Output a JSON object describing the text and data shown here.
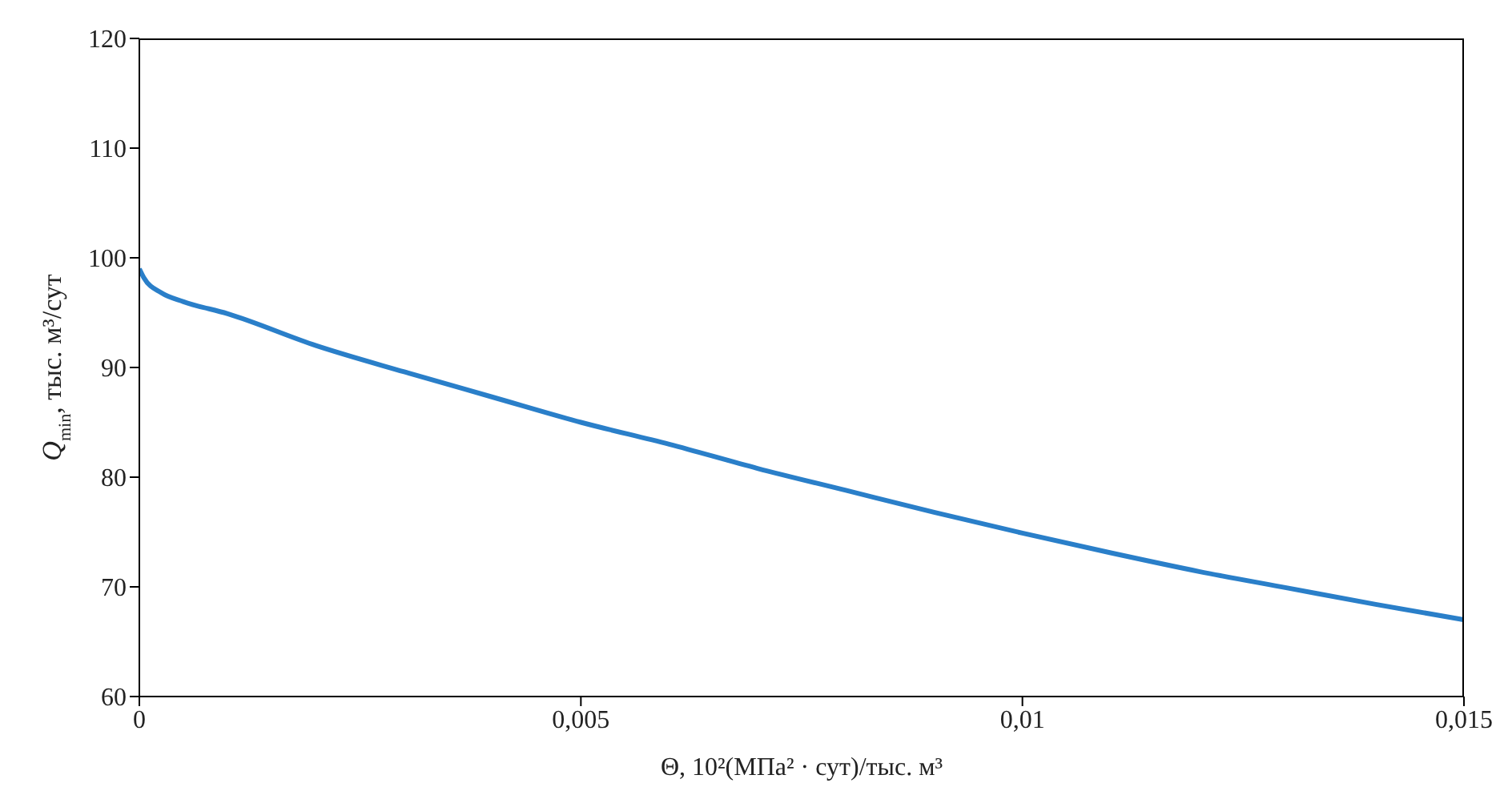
{
  "chart_data": {
    "type": "line",
    "xlabel": "Θ, 10²(МПа² · сут)/тыс. м³",
    "ylabel": "Q$_{min}$, тыс. м³/сут",
    "x": [
      0,
      5e-05,
      0.00025,
      0.0005,
      0.001,
      0.002,
      0.003,
      0.004,
      0.005,
      0.006,
      0.007,
      0.008,
      0.009,
      0.01,
      0.011,
      0.012,
      0.013,
      0.014,
      0.015
    ],
    "series": [
      {
        "color": "#2a7fc9",
        "values": [
          99,
          98.2,
          96.8,
          96.0,
          94.9,
          92.0,
          89.6,
          87.3,
          85.0,
          83.0,
          80.8,
          78.8,
          76.8,
          74.9,
          73.1,
          71.4,
          69.9,
          68.4,
          67.0
        ]
      }
    ],
    "xlim": [
      0,
      0.015
    ],
    "xticks": [
      0,
      {
        "value": 0.005,
        "label": "0,005"
      },
      {
        "value": 0.01,
        "label": "0,01"
      },
      {
        "value": 0.015,
        "label": "0,015"
      }
    ],
    "ylim": [
      60,
      120
    ],
    "yticks": [
      60,
      70,
      80,
      90,
      100,
      110,
      120
    ],
    "marker": "none",
    "line_style": "solid"
  }
}
